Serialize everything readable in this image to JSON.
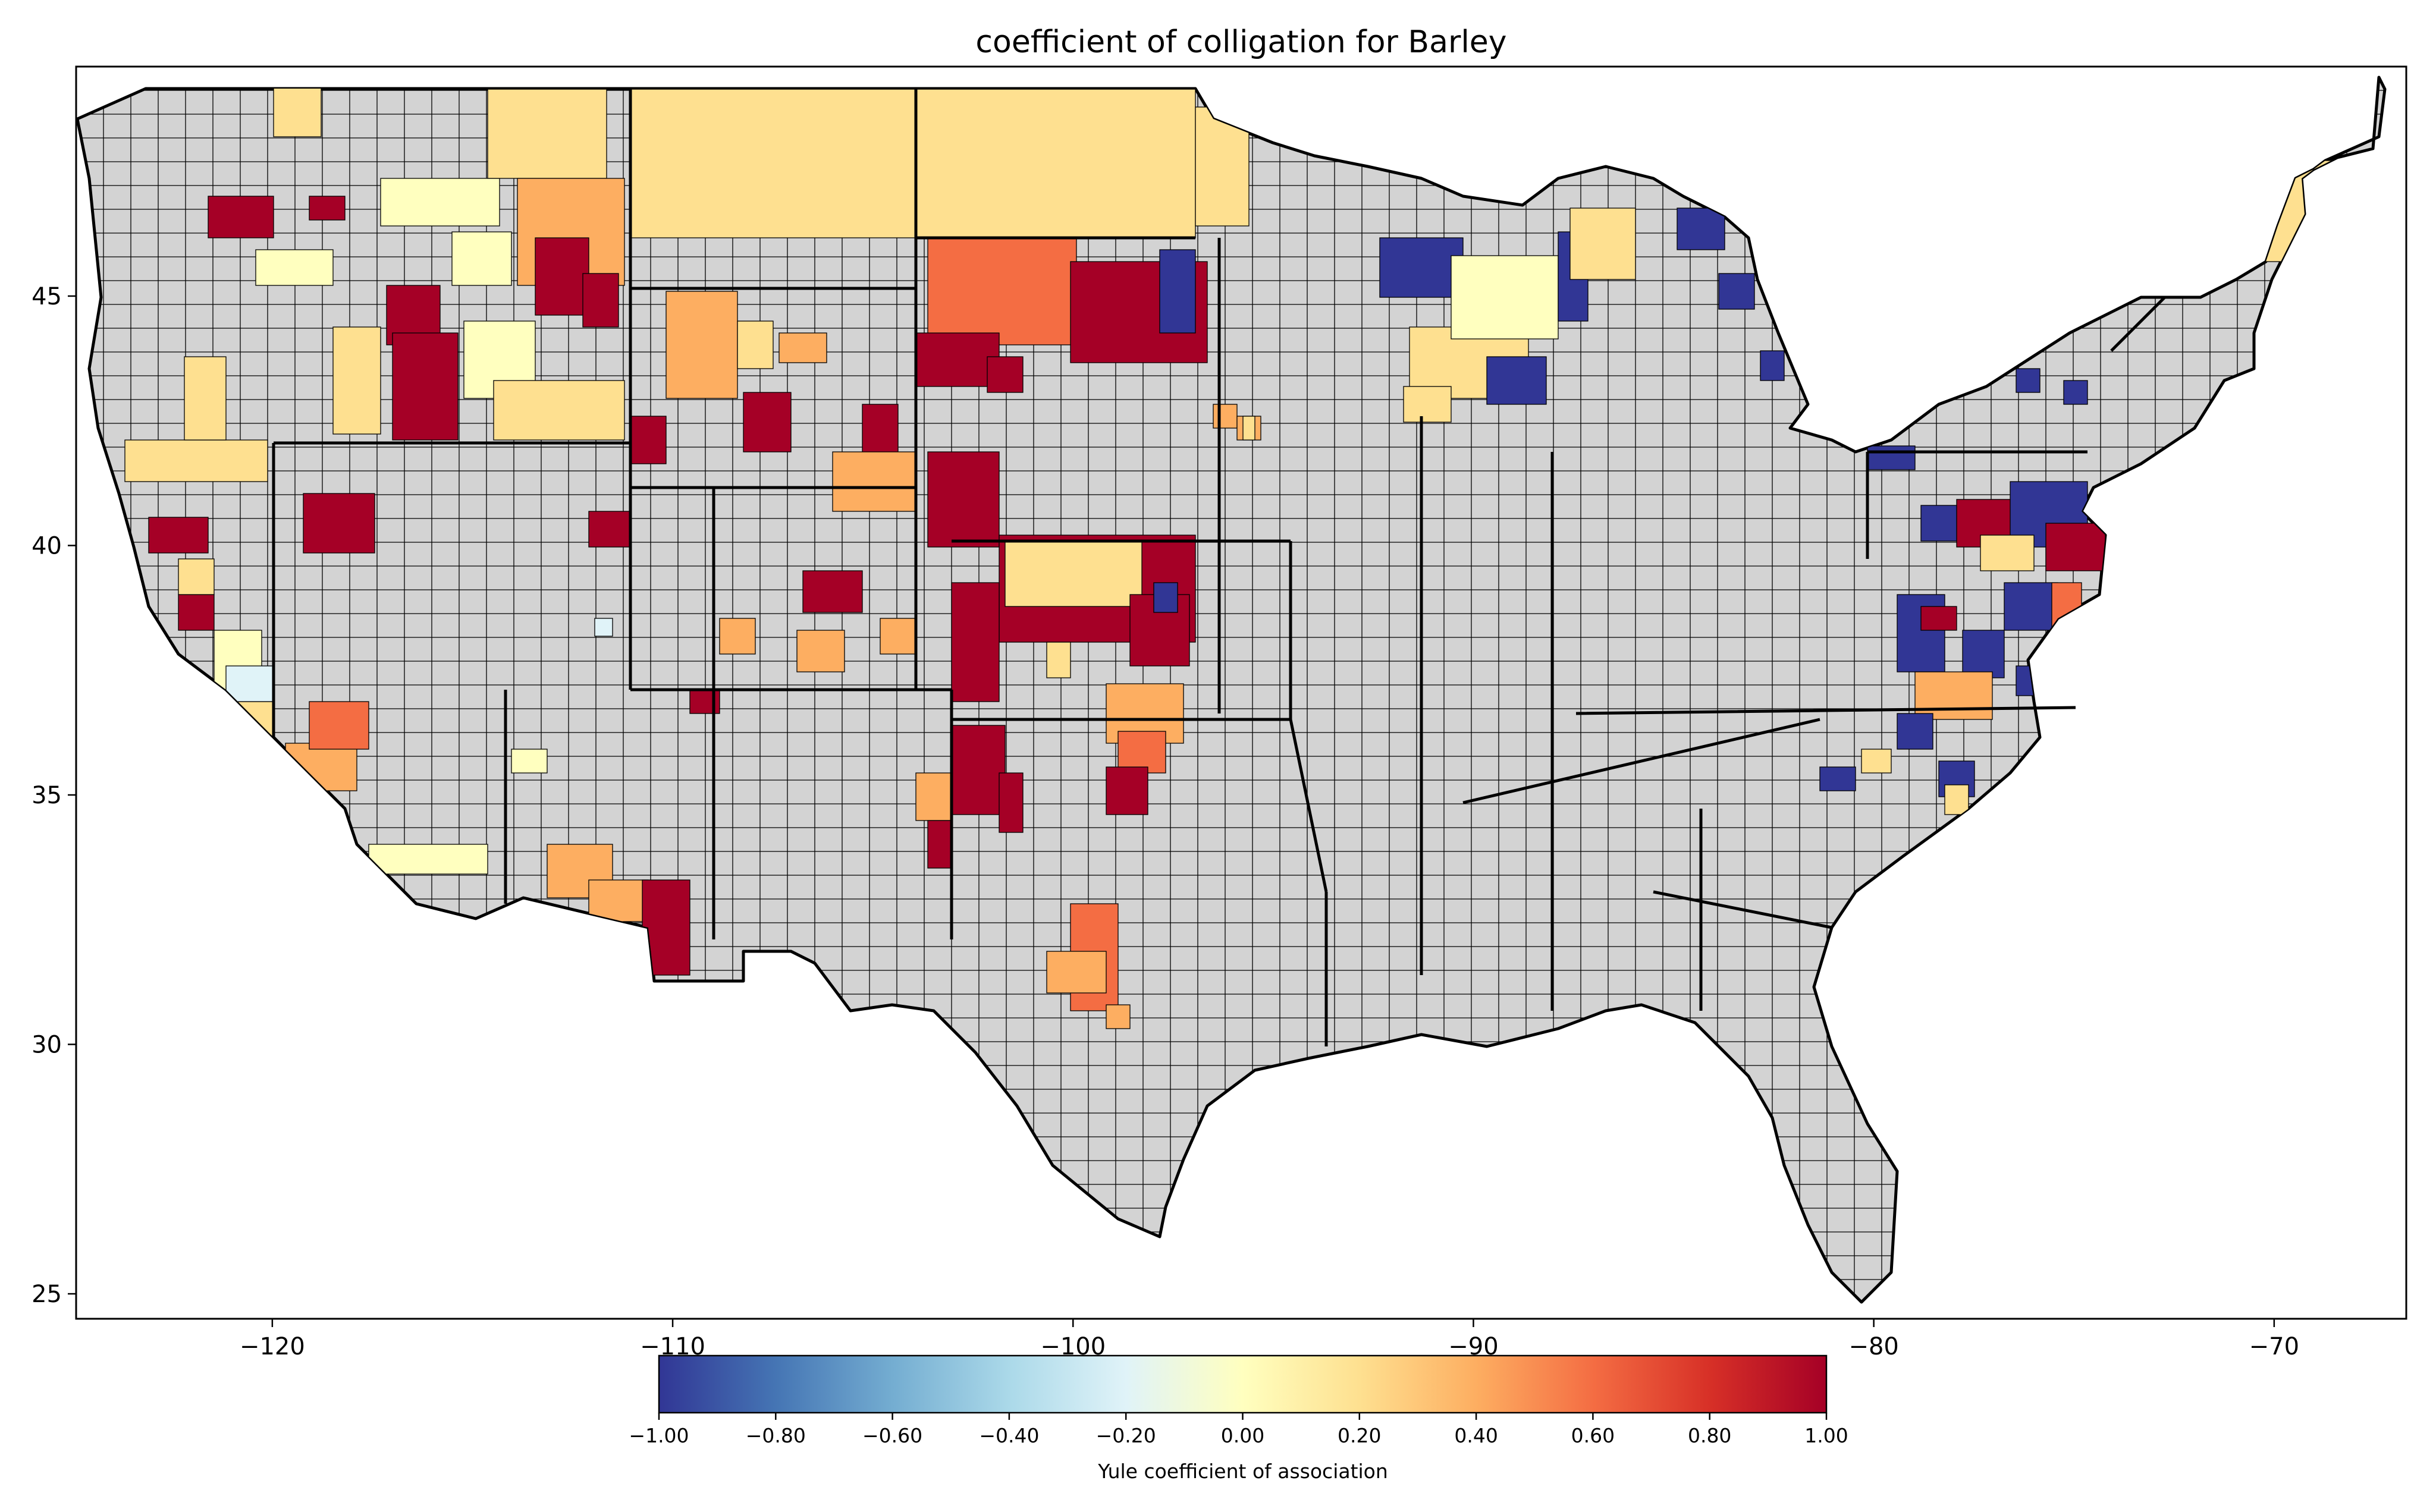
{
  "title": "coefficient of colligation for Barley",
  "map": {
    "x_ticks": [
      "−120",
      "−110",
      "−100",
      "−90",
      "−80",
      "−70"
    ],
    "y_ticks": [
      "25",
      "30",
      "35",
      "40",
      "45"
    ],
    "x_range": [
      -124.9,
      -66.7
    ],
    "y_range": [
      24.5,
      49.6
    ],
    "no_data_color": "#d3d3d3",
    "border_color": "#000000"
  },
  "colorbar": {
    "label": "Yule coefficient of association",
    "ticks": [
      "−1.00",
      "−0.80",
      "−0.60",
      "−0.40",
      "−0.20",
      "0.00",
      "0.20",
      "0.40",
      "0.60",
      "0.80",
      "1.00"
    ],
    "range": [
      -1,
      1
    ],
    "colormap": "RdYlBu_r",
    "stops": [
      "#313695",
      "#4575b4",
      "#74add1",
      "#abd9e9",
      "#e0f3f8",
      "#ffffbf",
      "#fee090",
      "#fdae61",
      "#f46d43",
      "#d73027",
      "#a50026"
    ]
  }
}
